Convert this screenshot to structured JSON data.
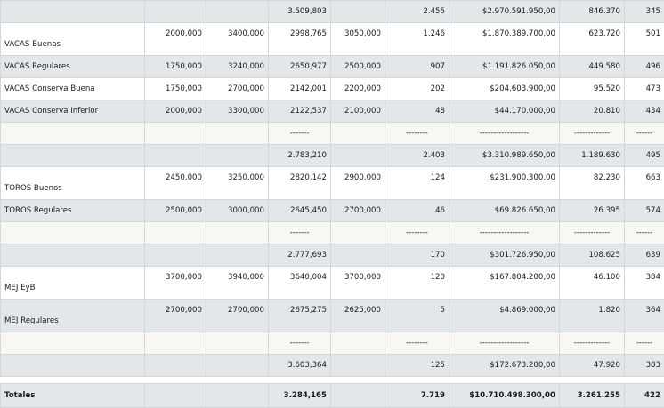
{
  "rows": [
    {
      "style": "gray",
      "label": "",
      "c1": "",
      "c2": "",
      "c3": "3.509,803",
      "c4": "",
      "c5": "2.455",
      "c6": "$2.970.591.950,00",
      "c7": "846.370",
      "c8": "345"
    },
    {
      "style": "white",
      "label": "VACAS Buenas",
      "c1": "2000,000",
      "c2": "3400,000",
      "c3": "2998,765",
      "c4": "3050,000",
      "c5": "1.246",
      "c6": "$1.870.389.700,00",
      "c7": "623.720",
      "c8": "501"
    },
    {
      "style": "gray",
      "label": "VACAS Regulares",
      "c1": "1750,000",
      "c2": "3240,000",
      "c3": "2650,977",
      "c4": "2500,000",
      "c5": "907",
      "c6": "$1.191.826.050,00",
      "c7": "449.580",
      "c8": "496"
    },
    {
      "style": "white",
      "label": "VACAS Conserva Buena",
      "c1": "1750,000",
      "c2": "2700,000",
      "c3": "2142,001",
      "c4": "2200,000",
      "c5": "202",
      "c6": "$204.603.900,00",
      "c7": "95.520",
      "c8": "473"
    },
    {
      "style": "gray",
      "label": "VACAS Conserva Inferior",
      "c1": "2000,000",
      "c2": "3300,000",
      "c3": "2122,537",
      "c4": "2100,000",
      "c5": "48",
      "c6": "$44.170.000,00",
      "c7": "20.810",
      "c8": "434"
    },
    {
      "style": "cream",
      "label": "",
      "c1": "",
      "c2": "",
      "c3": "-------",
      "c4": "",
      "c5": "--------",
      "c6": "------------------",
      "c7": "-------------",
      "c8": "------"
    },
    {
      "style": "gray",
      "label": "",
      "c1": "",
      "c2": "",
      "c3": "2.783,210",
      "c4": "",
      "c5": "2.403",
      "c6": "$3.310.989.650,00",
      "c7": "1.189.630",
      "c8": "495"
    },
    {
      "style": "white",
      "label": "TOROS Buenos",
      "c1": "2450,000",
      "c2": "3250,000",
      "c3": "2820,142",
      "c4": "2900,000",
      "c5": "124",
      "c6": "$231.900.300,00",
      "c7": "82.230",
      "c8": "663"
    },
    {
      "style": "gray",
      "label": "TOROS Regulares",
      "c1": "2500,000",
      "c2": "3000,000",
      "c3": "2645,450",
      "c4": "2700,000",
      "c5": "46",
      "c6": "$69.826.650,00",
      "c7": "26.395",
      "c8": "574"
    },
    {
      "style": "cream",
      "label": "",
      "c1": "",
      "c2": "",
      "c3": "-------",
      "c4": "",
      "c5": "--------",
      "c6": "------------------",
      "c7": "-------------",
      "c8": "------"
    },
    {
      "style": "gray",
      "label": "",
      "c1": "",
      "c2": "",
      "c3": "2.777,693",
      "c4": "",
      "c5": "170",
      "c6": "$301.726.950,00",
      "c7": "108.625",
      "c8": "639"
    },
    {
      "style": "white",
      "label": "MEJ EyB",
      "c1": "3700,000",
      "c2": "3940,000",
      "c3": "3640,004",
      "c4": "3700,000",
      "c5": "120",
      "c6": "$167.804.200,00",
      "c7": "46.100",
      "c8": "384"
    },
    {
      "style": "gray",
      "label": "MEJ Regulares",
      "c1": "2700,000",
      "c2": "2700,000",
      "c3": "2675,275",
      "c4": "2625,000",
      "c5": "5",
      "c6": "$4.869.000,00",
      "c7": "1.820",
      "c8": "364"
    },
    {
      "style": "cream",
      "label": "",
      "c1": "",
      "c2": "",
      "c3": "-------",
      "c4": "",
      "c5": "--------",
      "c6": "------------------",
      "c7": "-------------",
      "c8": "------"
    },
    {
      "style": "gray",
      "label": "",
      "c1": "",
      "c2": "",
      "c3": "3.603,364",
      "c4": "",
      "c5": "125",
      "c6": "$172.673.200,00",
      "c7": "47.920",
      "c8": "383"
    }
  ],
  "totals": {
    "label": "Totales",
    "c3": "3.284,165",
    "c5": "7.719",
    "c6": "$10.710.498.300,00",
    "c7": "3.261.255",
    "c8": "422"
  }
}
